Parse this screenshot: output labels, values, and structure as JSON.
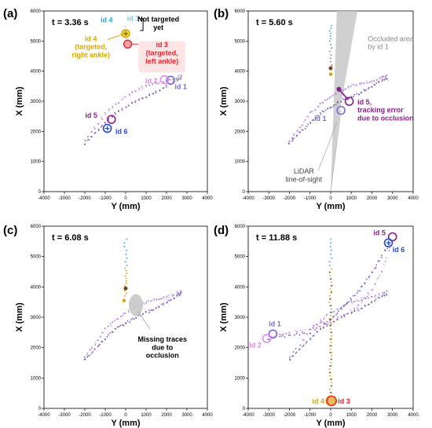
{
  "figure": {
    "axis_labels": {
      "x": "Y (mm)",
      "y": "X (mm)"
    },
    "x_ticks": [
      "-4000",
      "-3000",
      "-2000",
      "-1000",
      "0",
      "1000",
      "2000",
      "3000",
      "4000"
    ],
    "y_ticks": [
      "0",
      "1000",
      "2000",
      "3000",
      "4000",
      "5000",
      "6000"
    ],
    "colors": {
      "id1": "#7b68d6",
      "id2": "#e080e8",
      "id3": "#e8262a",
      "id4": "#d4a800",
      "id5": "#8a1f8a",
      "id6": "#2447d1",
      "trace_light": "#9fd6ee",
      "occlusion": "#c8c8c8",
      "pointer": "#999999"
    }
  },
  "panels": [
    {
      "letter": "(a)",
      "time": "t = 3.36 s",
      "labels": {
        "id4_top": "id 4",
        "id3_top": "id 3",
        "not_targeted": "Not targeted\nyet",
        "id4_desc": "id 4\n(targeted,\nright ankle)",
        "id3_desc": "id 3\n(targeted,\nleft ankle)",
        "id2": "id 2",
        "id1": "id 1",
        "id5": "id 5",
        "id6": "id 6"
      }
    },
    {
      "letter": "(b)",
      "time": "t = 5.60 s",
      "labels": {
        "occluded": "Occluded area\nby id 1",
        "id5": "id 5,\ntracking error\ndue to occlusion",
        "id1": "id 1",
        "lidar": "LiDAR\nline-of-sight"
      }
    },
    {
      "letter": "(c)",
      "time": "t = 6.08 s",
      "labels": {
        "missing": "Missing traces\ndue to\nocclusion"
      }
    },
    {
      "letter": "(d)",
      "time": "t = 11.88 s",
      "labels": {
        "id5": "id 5",
        "id6": "id 6",
        "id1": "id 1",
        "id2": "id 2",
        "id4": "id 4",
        "id3": "id 3"
      }
    }
  ]
}
